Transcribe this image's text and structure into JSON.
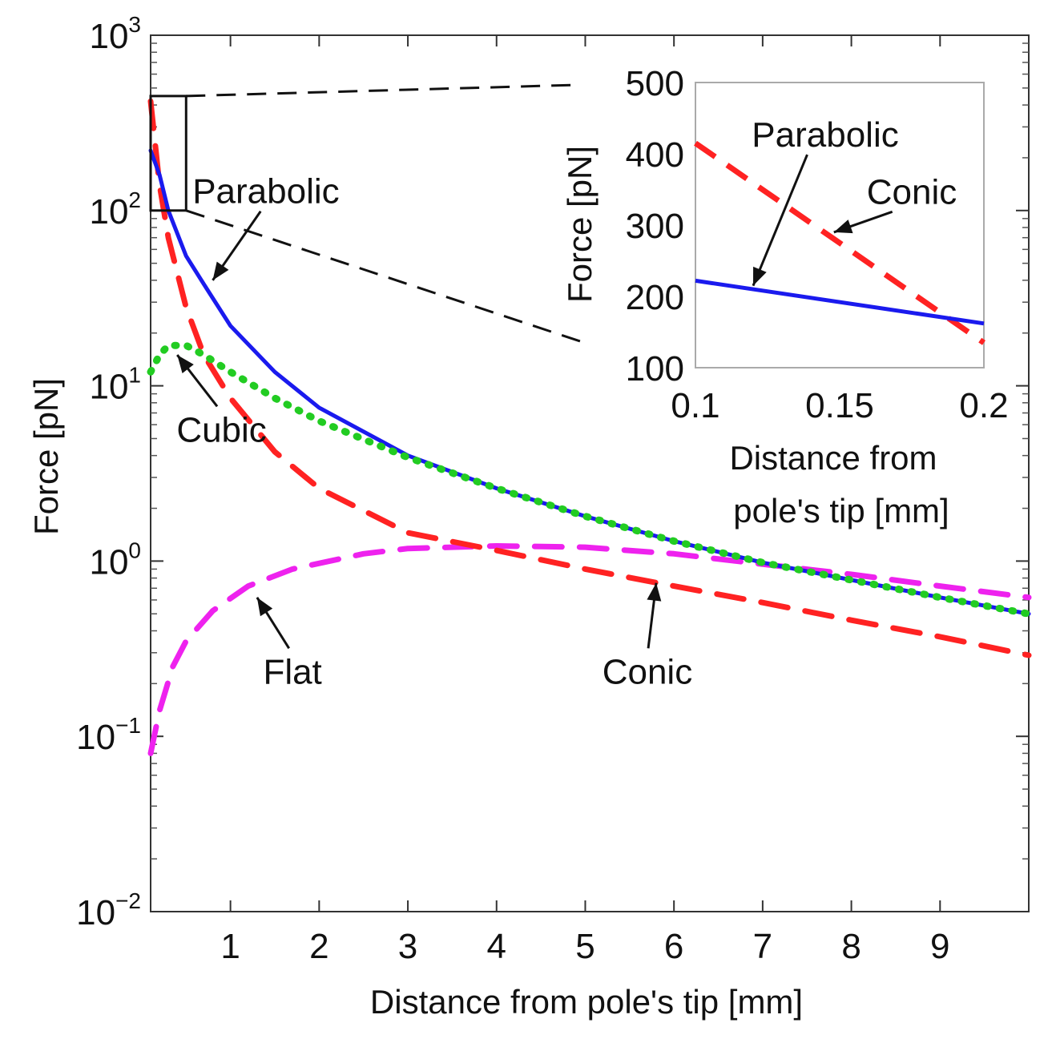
{
  "chart_data": {
    "type": "line",
    "xlabel": "Distance from pole's tip [mm]",
    "ylabel": "Force [pN]",
    "yscale": "log",
    "xlim": [
      0.1,
      10
    ],
    "ylim": [
      0.01,
      1000
    ],
    "x_ticks": [
      1,
      2,
      3,
      4,
      5,
      6,
      7,
      8,
      9
    ],
    "y_ticks": [
      {
        "value": 0.01,
        "base": "10",
        "exp": "−2"
      },
      {
        "value": 0.1,
        "base": "10",
        "exp": "−1"
      },
      {
        "value": 1,
        "base": "10",
        "exp": "0"
      },
      {
        "value": 10,
        "base": "10",
        "exp": "1"
      },
      {
        "value": 100,
        "base": "10",
        "exp": "2"
      },
      {
        "value": 1000,
        "base": "10",
        "exp": "3"
      }
    ],
    "series": [
      {
        "name": "Conic",
        "color": "#ff2222",
        "style": "dashed",
        "x": [
          0.1,
          0.2,
          0.3,
          0.5,
          0.7,
          1.0,
          1.5,
          2.0,
          3.0,
          4.0,
          5.0,
          6.0,
          7.0,
          8.0,
          9.0,
          10.0
        ],
        "y": [
          420,
          140,
          70,
          28,
          15,
          8.5,
          4.2,
          2.6,
          1.45,
          1.15,
          0.9,
          0.72,
          0.58,
          0.46,
          0.37,
          0.29
        ]
      },
      {
        "name": "Parabolic",
        "color": "#1a1aee",
        "style": "solid",
        "x": [
          0.1,
          0.2,
          0.3,
          0.5,
          0.7,
          1.0,
          1.5,
          2.0,
          3.0,
          4.0,
          5.0,
          6.0,
          7.0,
          8.0,
          9.0,
          10.0
        ],
        "y": [
          220,
          160,
          100,
          55,
          38,
          22,
          12,
          7.5,
          4.0,
          2.6,
          1.8,
          1.3,
          0.98,
          0.78,
          0.62,
          0.5
        ]
      },
      {
        "name": "Cubic",
        "color": "#22cc22",
        "style": "dotted",
        "x": [
          0.1,
          0.2,
          0.3,
          0.5,
          0.7,
          1.0,
          1.5,
          2.0,
          3.0,
          4.0,
          5.0,
          6.0,
          7.0,
          8.0,
          9.0,
          10.0
        ],
        "y": [
          12,
          15,
          17,
          17,
          15,
          12,
          8.5,
          6.3,
          3.9,
          2.6,
          1.8,
          1.3,
          0.98,
          0.78,
          0.62,
          0.5
        ]
      },
      {
        "name": "Flat",
        "color": "#ee22ee",
        "style": "dashed",
        "x": [
          0.1,
          0.2,
          0.35,
          0.5,
          0.8,
          1.2,
          1.7,
          2.5,
          3.0,
          4.0,
          5.0,
          6.0,
          7.0,
          8.0,
          9.0,
          10.0
        ],
        "y": [
          0.08,
          0.14,
          0.25,
          0.35,
          0.52,
          0.72,
          0.9,
          1.1,
          1.18,
          1.22,
          1.2,
          1.1,
          0.96,
          0.84,
          0.72,
          0.62
        ]
      }
    ],
    "annotations": [
      {
        "text": "Parabolic",
        "x": 1.4,
        "y": 110,
        "arrow_to": {
          "x": 0.8,
          "y": 40
        }
      },
      {
        "text": "Cubic",
        "x": 0.9,
        "y": 4.8,
        "arrow_to": {
          "x": 0.4,
          "y": 15
        }
      },
      {
        "text": "Flat",
        "x": 1.7,
        "y": 0.2,
        "arrow_to": {
          "x": 1.3,
          "y": 0.62
        }
      },
      {
        "text": "Conic",
        "x": 5.7,
        "y": 0.2,
        "arrow_to": {
          "x": 5.8,
          "y": 0.75
        }
      }
    ],
    "zoom_box": {
      "x": [
        0.1,
        0.5
      ],
      "y": [
        100,
        450
      ]
    },
    "inset": {
      "type": "line",
      "xlabel_line1": "Distance from",
      "xlabel_line2": "pole's tip [mm]",
      "ylabel": "Force [pN]",
      "xlim": [
        0.1,
        0.2
      ],
      "ylim": [
        100,
        500
      ],
      "x_ticks": [
        "0.1",
        "0.15",
        "0.2"
      ],
      "x_tick_values": [
        0.1,
        0.15,
        0.2
      ],
      "y_ticks": [
        "100",
        "200",
        "300",
        "400",
        "500"
      ],
      "y_tick_values": [
        100,
        200,
        300,
        400,
        500
      ],
      "series": [
        {
          "name": "Conic",
          "color": "#ff2222",
          "style": "dashed",
          "x": [
            0.1,
            0.2
          ],
          "y": [
            415,
            135
          ]
        },
        {
          "name": "Parabolic",
          "color": "#1a1aee",
          "style": "solid",
          "x": [
            0.1,
            0.2
          ],
          "y": [
            222,
            162
          ]
        }
      ],
      "annotations": [
        {
          "text": "Parabolic",
          "x": 0.145,
          "y": 410,
          "arrow_to": {
            "x": 0.12,
            "y": 215
          }
        },
        {
          "text": "Conic",
          "x": 0.175,
          "y": 330,
          "arrow_to": {
            "x": 0.148,
            "y": 290
          }
        }
      ]
    }
  }
}
